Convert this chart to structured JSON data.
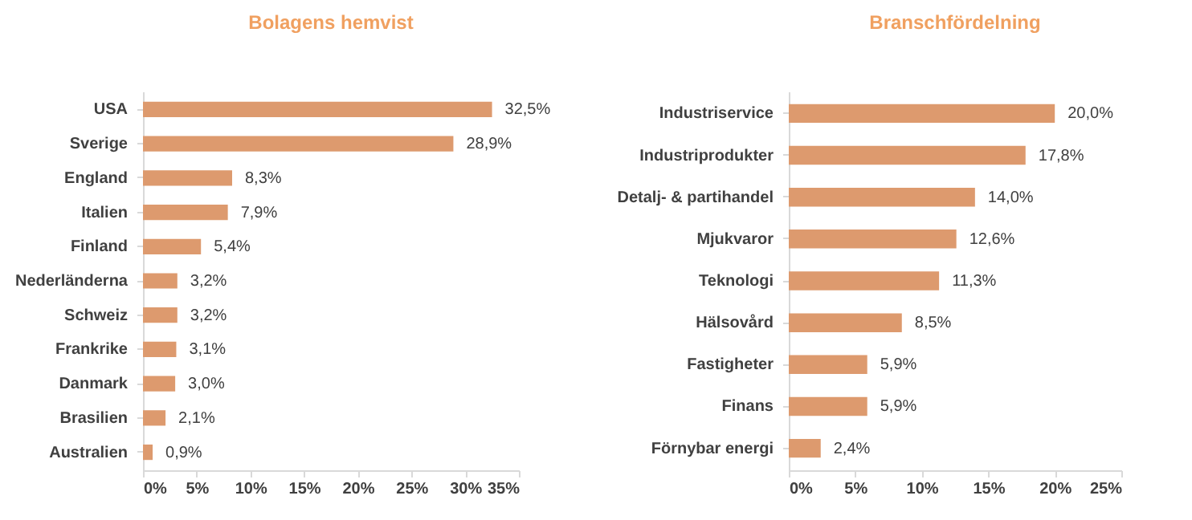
{
  "chart_data": [
    {
      "type": "bar",
      "orientation": "horizontal",
      "title": "Bolagens hemvist",
      "categories": [
        "USA",
        "Sverige",
        "England",
        "Italien",
        "Finland",
        "Nederländerna",
        "Schweiz",
        "Frankrike",
        "Danmark",
        "Brasilien",
        "Australien"
      ],
      "values": [
        32.5,
        28.9,
        8.3,
        7.9,
        5.4,
        3.2,
        3.2,
        3.1,
        3.0,
        2.1,
        0.9
      ],
      "value_labels": [
        "32,5%",
        "28,9%",
        "8,3%",
        "7,9%",
        "5,4%",
        "3,2%",
        "3,2%",
        "3,1%",
        "3,0%",
        "2,1%",
        "0,9%"
      ],
      "color": "#dd9a6e",
      "xlim": [
        0,
        35
      ],
      "xticks": [
        {
          "value": 0,
          "label": "0%"
        },
        {
          "value": 5,
          "label": "5%"
        },
        {
          "value": 10,
          "label": "10%"
        },
        {
          "value": 15,
          "label": "15%"
        },
        {
          "value": 20,
          "label": "20%"
        },
        {
          "value": 25,
          "label": "25%"
        },
        {
          "value": 30,
          "label": "30%"
        },
        {
          "value": 35,
          "label": "35%"
        }
      ]
    },
    {
      "type": "bar",
      "orientation": "horizontal",
      "title": "Branschfördelning",
      "categories": [
        "Industriservice",
        "Industriprodukter",
        "Detalj- & partihandel",
        "Mjukvaror",
        "Teknologi",
        "Hälsovård",
        "Fastigheter",
        "Finans",
        "Förnybar energi"
      ],
      "values": [
        20.0,
        17.8,
        14.0,
        12.6,
        11.3,
        8.5,
        5.9,
        5.9,
        2.4
      ],
      "value_labels": [
        "20,0%",
        "17,8%",
        "14,0%",
        "12,6%",
        "11,3%",
        "8,5%",
        "5,9%",
        "5,9%",
        "2,4%"
      ],
      "color": "#dd9a6e",
      "xlim": [
        0,
        25
      ],
      "xticks": [
        {
          "value": 0,
          "label": "0%"
        },
        {
          "value": 5,
          "label": "5%"
        },
        {
          "value": 10,
          "label": "10%"
        },
        {
          "value": 15,
          "label": "15%"
        },
        {
          "value": 20,
          "label": "20%"
        },
        {
          "value": 25,
          "label": "25%"
        }
      ]
    }
  ]
}
